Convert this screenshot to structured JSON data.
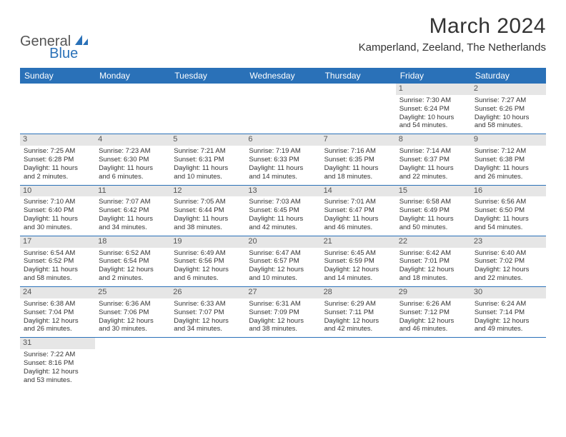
{
  "logo": {
    "text1": "General",
    "text2": "Blue"
  },
  "title": "March 2024",
  "location": "Kamperland, Zeeland, The Netherlands",
  "colors": {
    "header_bg": "#2a71b8",
    "header_text": "#ffffff",
    "daynum_bg": "#e6e6e6",
    "border": "#2a71b8",
    "logo_accent": "#2a71b8"
  },
  "fonts": {
    "title_size": 30,
    "location_size": 15,
    "dow_size": 12,
    "cell_size": 9.5
  },
  "daysOfWeek": [
    "Sunday",
    "Monday",
    "Tuesday",
    "Wednesday",
    "Thursday",
    "Friday",
    "Saturday"
  ],
  "weeks": [
    [
      null,
      null,
      null,
      null,
      null,
      {
        "n": "1",
        "sr": "Sunrise: 7:30 AM",
        "ss": "Sunset: 6:24 PM",
        "d1": "Daylight: 10 hours",
        "d2": "and 54 minutes."
      },
      {
        "n": "2",
        "sr": "Sunrise: 7:27 AM",
        "ss": "Sunset: 6:26 PM",
        "d1": "Daylight: 10 hours",
        "d2": "and 58 minutes."
      }
    ],
    [
      {
        "n": "3",
        "sr": "Sunrise: 7:25 AM",
        "ss": "Sunset: 6:28 PM",
        "d1": "Daylight: 11 hours",
        "d2": "and 2 minutes."
      },
      {
        "n": "4",
        "sr": "Sunrise: 7:23 AM",
        "ss": "Sunset: 6:30 PM",
        "d1": "Daylight: 11 hours",
        "d2": "and 6 minutes."
      },
      {
        "n": "5",
        "sr": "Sunrise: 7:21 AM",
        "ss": "Sunset: 6:31 PM",
        "d1": "Daylight: 11 hours",
        "d2": "and 10 minutes."
      },
      {
        "n": "6",
        "sr": "Sunrise: 7:19 AM",
        "ss": "Sunset: 6:33 PM",
        "d1": "Daylight: 11 hours",
        "d2": "and 14 minutes."
      },
      {
        "n": "7",
        "sr": "Sunrise: 7:16 AM",
        "ss": "Sunset: 6:35 PM",
        "d1": "Daylight: 11 hours",
        "d2": "and 18 minutes."
      },
      {
        "n": "8",
        "sr": "Sunrise: 7:14 AM",
        "ss": "Sunset: 6:37 PM",
        "d1": "Daylight: 11 hours",
        "d2": "and 22 minutes."
      },
      {
        "n": "9",
        "sr": "Sunrise: 7:12 AM",
        "ss": "Sunset: 6:38 PM",
        "d1": "Daylight: 11 hours",
        "d2": "and 26 minutes."
      }
    ],
    [
      {
        "n": "10",
        "sr": "Sunrise: 7:10 AM",
        "ss": "Sunset: 6:40 PM",
        "d1": "Daylight: 11 hours",
        "d2": "and 30 minutes."
      },
      {
        "n": "11",
        "sr": "Sunrise: 7:07 AM",
        "ss": "Sunset: 6:42 PM",
        "d1": "Daylight: 11 hours",
        "d2": "and 34 minutes."
      },
      {
        "n": "12",
        "sr": "Sunrise: 7:05 AM",
        "ss": "Sunset: 6:44 PM",
        "d1": "Daylight: 11 hours",
        "d2": "and 38 minutes."
      },
      {
        "n": "13",
        "sr": "Sunrise: 7:03 AM",
        "ss": "Sunset: 6:45 PM",
        "d1": "Daylight: 11 hours",
        "d2": "and 42 minutes."
      },
      {
        "n": "14",
        "sr": "Sunrise: 7:01 AM",
        "ss": "Sunset: 6:47 PM",
        "d1": "Daylight: 11 hours",
        "d2": "and 46 minutes."
      },
      {
        "n": "15",
        "sr": "Sunrise: 6:58 AM",
        "ss": "Sunset: 6:49 PM",
        "d1": "Daylight: 11 hours",
        "d2": "and 50 minutes."
      },
      {
        "n": "16",
        "sr": "Sunrise: 6:56 AM",
        "ss": "Sunset: 6:50 PM",
        "d1": "Daylight: 11 hours",
        "d2": "and 54 minutes."
      }
    ],
    [
      {
        "n": "17",
        "sr": "Sunrise: 6:54 AM",
        "ss": "Sunset: 6:52 PM",
        "d1": "Daylight: 11 hours",
        "d2": "and 58 minutes."
      },
      {
        "n": "18",
        "sr": "Sunrise: 6:52 AM",
        "ss": "Sunset: 6:54 PM",
        "d1": "Daylight: 12 hours",
        "d2": "and 2 minutes."
      },
      {
        "n": "19",
        "sr": "Sunrise: 6:49 AM",
        "ss": "Sunset: 6:56 PM",
        "d1": "Daylight: 12 hours",
        "d2": "and 6 minutes."
      },
      {
        "n": "20",
        "sr": "Sunrise: 6:47 AM",
        "ss": "Sunset: 6:57 PM",
        "d1": "Daylight: 12 hours",
        "d2": "and 10 minutes."
      },
      {
        "n": "21",
        "sr": "Sunrise: 6:45 AM",
        "ss": "Sunset: 6:59 PM",
        "d1": "Daylight: 12 hours",
        "d2": "and 14 minutes."
      },
      {
        "n": "22",
        "sr": "Sunrise: 6:42 AM",
        "ss": "Sunset: 7:01 PM",
        "d1": "Daylight: 12 hours",
        "d2": "and 18 minutes."
      },
      {
        "n": "23",
        "sr": "Sunrise: 6:40 AM",
        "ss": "Sunset: 7:02 PM",
        "d1": "Daylight: 12 hours",
        "d2": "and 22 minutes."
      }
    ],
    [
      {
        "n": "24",
        "sr": "Sunrise: 6:38 AM",
        "ss": "Sunset: 7:04 PM",
        "d1": "Daylight: 12 hours",
        "d2": "and 26 minutes."
      },
      {
        "n": "25",
        "sr": "Sunrise: 6:36 AM",
        "ss": "Sunset: 7:06 PM",
        "d1": "Daylight: 12 hours",
        "d2": "and 30 minutes."
      },
      {
        "n": "26",
        "sr": "Sunrise: 6:33 AM",
        "ss": "Sunset: 7:07 PM",
        "d1": "Daylight: 12 hours",
        "d2": "and 34 minutes."
      },
      {
        "n": "27",
        "sr": "Sunrise: 6:31 AM",
        "ss": "Sunset: 7:09 PM",
        "d1": "Daylight: 12 hours",
        "d2": "and 38 minutes."
      },
      {
        "n": "28",
        "sr": "Sunrise: 6:29 AM",
        "ss": "Sunset: 7:11 PM",
        "d1": "Daylight: 12 hours",
        "d2": "and 42 minutes."
      },
      {
        "n": "29",
        "sr": "Sunrise: 6:26 AM",
        "ss": "Sunset: 7:12 PM",
        "d1": "Daylight: 12 hours",
        "d2": "and 46 minutes."
      },
      {
        "n": "30",
        "sr": "Sunrise: 6:24 AM",
        "ss": "Sunset: 7:14 PM",
        "d1": "Daylight: 12 hours",
        "d2": "and 49 minutes."
      }
    ],
    [
      {
        "n": "31",
        "sr": "Sunrise: 7:22 AM",
        "ss": "Sunset: 8:16 PM",
        "d1": "Daylight: 12 hours",
        "d2": "and 53 minutes."
      },
      null,
      null,
      null,
      null,
      null,
      null
    ]
  ]
}
